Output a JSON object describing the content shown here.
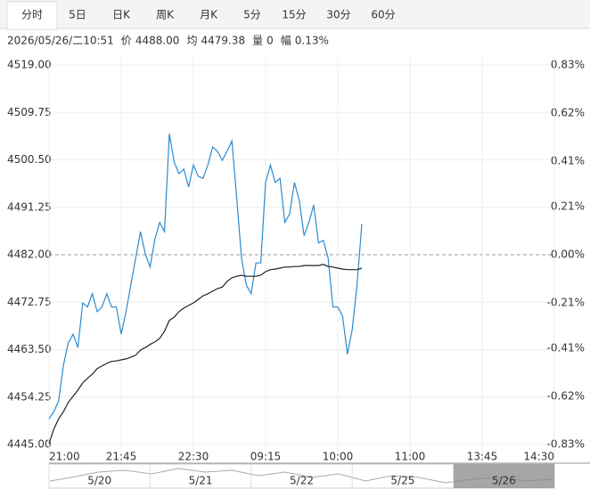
{
  "tabs": [
    "分时",
    "5日",
    "日K",
    "周K",
    "月K",
    "5分",
    "15分",
    "30分",
    "60分"
  ],
  "selected_tab": 0,
  "info": {
    "time": "2026/05/26/二10:51",
    "items": [
      {
        "label": "价",
        "value": "4488.00"
      },
      {
        "label": "均",
        "value": "4479.38"
      },
      {
        "label": "量",
        "value": "0"
      },
      {
        "label": "幅",
        "value": "0.13%"
      }
    ]
  },
  "chart_data": {
    "type": "line",
    "x": [
      0,
      3,
      6,
      9,
      12,
      15,
      18,
      21,
      24,
      27,
      30,
      33,
      36,
      39,
      42,
      45,
      48,
      51,
      54,
      57,
      60,
      63,
      66,
      69,
      72,
      75,
      78,
      81,
      84,
      87,
      90,
      93,
      96,
      99,
      102,
      105,
      108,
      111,
      114,
      117,
      120,
      123,
      126,
      129,
      132,
      135,
      138,
      141,
      144,
      147,
      150,
      153,
      156,
      159,
      162,
      165,
      168,
      171,
      174,
      177,
      180,
      183,
      186,
      189,
      192,
      195
    ],
    "series": [
      {
        "color": "#2b8bd0",
        "values": [
          4450.0,
          4451.4,
          4453.5,
          4460.5,
          4464.8,
          4466.5,
          4463.9,
          4472.6,
          4471.8,
          4474.4,
          4470.9,
          4471.8,
          4474.4,
          4471.8,
          4471.8,
          4466.5,
          4470.9,
          4476.1,
          4481.3,
          4486.5,
          4482.2,
          4479.6,
          4485.1,
          4488.3,
          4486.5,
          4505.6,
          4500.1,
          4497.8,
          4498.7,
          4495.2,
          4499.5,
          4497.3,
          4496.9,
          4499.5,
          4503.0,
          4502.2,
          4500.4,
          4502.2,
          4504.2,
          4493.1,
          4481.3,
          4476.1,
          4474.4,
          4480.4,
          4480.4,
          4496.1,
          4499.5,
          4496.1,
          4496.9,
          4488.3,
          4490.0,
          4496.1,
          4492.6,
          4485.7,
          4488.3,
          4491.7,
          4484.3,
          4484.8,
          4481.3,
          4471.8,
          4471.8,
          4470.0,
          4462.6,
          4467.4,
          4476.1,
          4488.0
        ]
      },
      {
        "color": "#222222",
        "values": [
          4445.2,
          4448.0,
          4450.0,
          4451.4,
          4453.2,
          4454.4,
          4455.6,
          4457.0,
          4457.9,
          4458.7,
          4459.8,
          4460.3,
          4460.8,
          4461.2,
          4461.3,
          4461.5,
          4461.7,
          4462.0,
          4462.4,
          4463.4,
          4463.9,
          4464.5,
          4465.0,
          4465.7,
          4467.1,
          4469.2,
          4469.8,
          4470.9,
          4471.6,
          4472.1,
          4472.6,
          4473.3,
          4474.0,
          4474.4,
          4474.9,
          4475.4,
          4475.7,
          4476.8,
          4477.5,
          4477.8,
          4478.0,
          4477.8,
          4477.8,
          4477.8,
          4478.0,
          4478.7,
          4479.1,
          4479.2,
          4479.4,
          4479.6,
          4479.6,
          4479.7,
          4479.7,
          4479.9,
          4479.9,
          4479.9,
          4479.9,
          4480.1,
          4479.7,
          4479.6,
          4479.4,
          4479.2,
          4479.1,
          4479.1,
          4479.1,
          4479.4
        ]
      }
    ],
    "xlim": [
      0,
      315
    ],
    "xticks": [
      {
        "value": 0,
        "label": "21:00"
      },
      {
        "value": 45,
        "label": "21:45"
      },
      {
        "value": 90,
        "label": "22:30"
      },
      {
        "value": 135,
        "label": "09:15"
      },
      {
        "value": 180,
        "label": "10:00"
      },
      {
        "value": 225,
        "label": "11:00"
      },
      {
        "value": 270,
        "label": "13:45"
      },
      {
        "value": 315,
        "label": "14:30"
      }
    ],
    "ylim": [
      4445,
      4519
    ],
    "yticks": [
      {
        "value": 4519,
        "label": "4519.00"
      },
      {
        "value": 4509.75,
        "label": "4509.75"
      },
      {
        "value": 4500.5,
        "label": "4500.50"
      },
      {
        "value": 4491.25,
        "label": "4491.25"
      },
      {
        "value": 4482,
        "label": "4482.00"
      },
      {
        "value": 4472.75,
        "label": "4472.75"
      },
      {
        "value": 4463.5,
        "label": "4463.50"
      },
      {
        "value": 4454.25,
        "label": "4454.25"
      },
      {
        "value": 4445,
        "label": "4445.00"
      }
    ],
    "y2lim": [
      -0.83,
      0.83
    ],
    "y2ticks": [
      {
        "value": 0.83,
        "label": "0.83%"
      },
      {
        "value": 0.62,
        "label": "0.62%"
      },
      {
        "value": 0.41,
        "label": "0.41%"
      },
      {
        "value": 0.21,
        "label": "0.21%"
      },
      {
        "value": 0,
        "label": "0.00%"
      },
      {
        "value": -0.21,
        "label": "-0.21%"
      },
      {
        "value": -0.41,
        "label": "-0.41%"
      },
      {
        "value": -0.62,
        "label": "-0.62%"
      },
      {
        "value": -0.83,
        "label": "-0.83%"
      }
    ],
    "reference_line": 4482,
    "grid": true
  },
  "navigator": {
    "dates": [
      "5/20",
      "5/21",
      "5/22",
      "5/25",
      "5/26"
    ]
  }
}
